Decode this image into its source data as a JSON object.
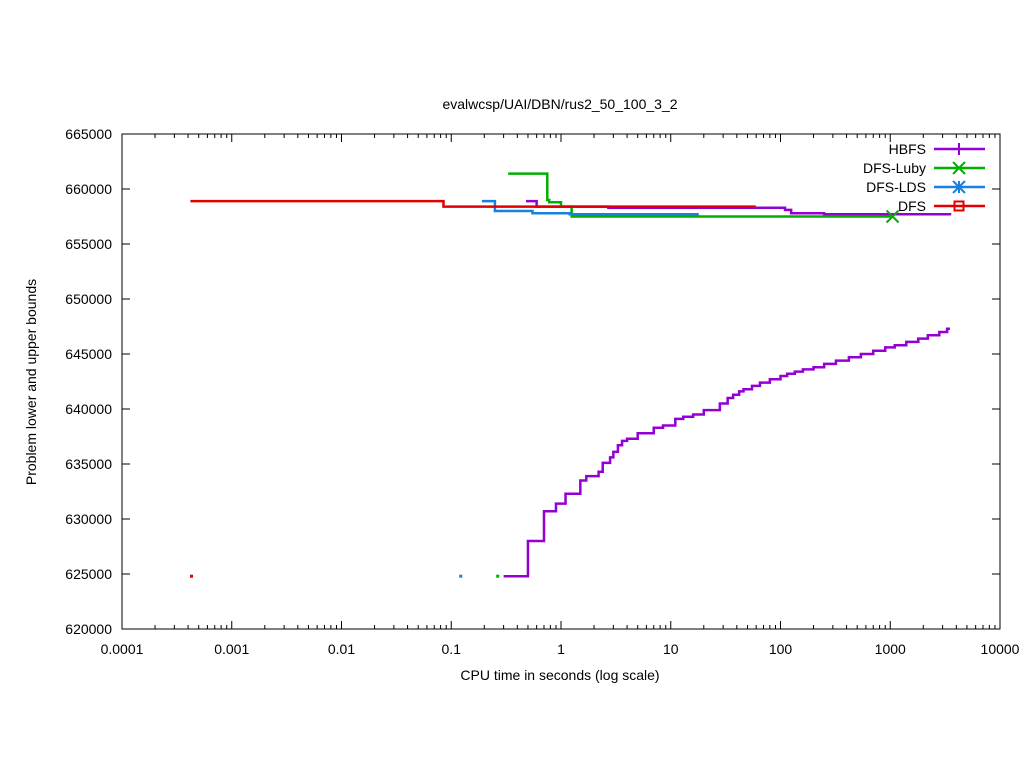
{
  "chart_data": {
    "type": "line",
    "title": "evalwcsp/UAI/DBN/rus2_50_100_3_2",
    "xlabel": "CPU time in seconds (log scale)",
    "ylabel": "Problem lower and upper bounds",
    "x_scale": "log",
    "xlim": [
      0.0001,
      10000
    ],
    "ylim": [
      620000,
      665000
    ],
    "x_ticks": [
      0.0001,
      0.001,
      0.01,
      0.1,
      1,
      10,
      100,
      1000,
      10000
    ],
    "x_tick_labels": [
      "0.0001",
      "0.001",
      "0.01",
      "0.1",
      "1",
      "10",
      "100",
      "1000",
      "10000"
    ],
    "y_ticks": [
      620000,
      625000,
      630000,
      635000,
      640000,
      645000,
      650000,
      655000,
      660000,
      665000
    ],
    "y_tick_labels": [
      "620000",
      "625000",
      "630000",
      "635000",
      "640000",
      "645000",
      "650000",
      "655000",
      "660000",
      "665000"
    ],
    "grid": false,
    "legend_position": "top-right",
    "series": [
      {
        "name": "HBFS",
        "color": "#9400d3",
        "marker": "plus",
        "upper": [
          [
            0.48,
            658900
          ],
          [
            0.6,
            658400
          ],
          [
            2.7,
            658300
          ],
          [
            110,
            658100
          ],
          [
            125,
            657800
          ],
          [
            250,
            657700
          ],
          [
            3500,
            657600
          ]
        ],
        "lower": [
          [
            0.3,
            624800
          ],
          [
            0.5,
            628000
          ],
          [
            0.7,
            630700
          ],
          [
            0.9,
            631400
          ],
          [
            1.1,
            632300
          ],
          [
            1.5,
            633500
          ],
          [
            1.7,
            633900
          ],
          [
            2.2,
            634300
          ],
          [
            2.4,
            635100
          ],
          [
            2.8,
            635600
          ],
          [
            3.0,
            636100
          ],
          [
            3.3,
            636700
          ],
          [
            3.6,
            637100
          ],
          [
            4.0,
            637300
          ],
          [
            5.0,
            637800
          ],
          [
            7.0,
            638300
          ],
          [
            8.5,
            638500
          ],
          [
            11,
            639100
          ],
          [
            13,
            639300
          ],
          [
            16,
            639500
          ],
          [
            20,
            639900
          ],
          [
            28,
            640500
          ],
          [
            33,
            641000
          ],
          [
            37,
            641300
          ],
          [
            42,
            641600
          ],
          [
            46,
            641800
          ],
          [
            55,
            642100
          ],
          [
            65,
            642400
          ],
          [
            80,
            642700
          ],
          [
            100,
            643000
          ],
          [
            115,
            643200
          ],
          [
            135,
            643400
          ],
          [
            160,
            643600
          ],
          [
            200,
            643800
          ],
          [
            250,
            644100
          ],
          [
            320,
            644400
          ],
          [
            420,
            644700
          ],
          [
            540,
            645000
          ],
          [
            700,
            645300
          ],
          [
            900,
            645600
          ],
          [
            1100,
            645800
          ],
          [
            1400,
            646100
          ],
          [
            1800,
            646400
          ],
          [
            2200,
            646700
          ],
          [
            2800,
            647000
          ],
          [
            3300,
            647300
          ],
          [
            3500,
            647300
          ]
        ]
      },
      {
        "name": "DFS-Luby",
        "color": "#00b000",
        "marker": "cross",
        "upper": [
          [
            0.33,
            661400
          ],
          [
            0.75,
            659000
          ],
          [
            0.78,
            658800
          ],
          [
            1.0,
            658400
          ],
          [
            1.25,
            657500
          ],
          [
            1050,
            657500
          ]
        ],
        "lower": [
          [
            0.265,
            624800
          ]
        ]
      },
      {
        "name": "DFS-LDS",
        "color": "#1a80e0",
        "marker": "star",
        "upper": [
          [
            0.19,
            658900
          ],
          [
            0.25,
            658000
          ],
          [
            0.55,
            657800
          ],
          [
            1.2,
            657700
          ],
          [
            18,
            657700
          ]
        ],
        "lower": [
          [
            0.122,
            624800
          ]
        ]
      },
      {
        "name": "DFS",
        "color": "#e00000",
        "marker": "square",
        "upper": [
          [
            0.00042,
            658900
          ],
          [
            0.085,
            658400
          ],
          [
            58,
            658300
          ]
        ],
        "lower": [
          [
            0.00043,
            624800
          ]
        ]
      }
    ]
  }
}
